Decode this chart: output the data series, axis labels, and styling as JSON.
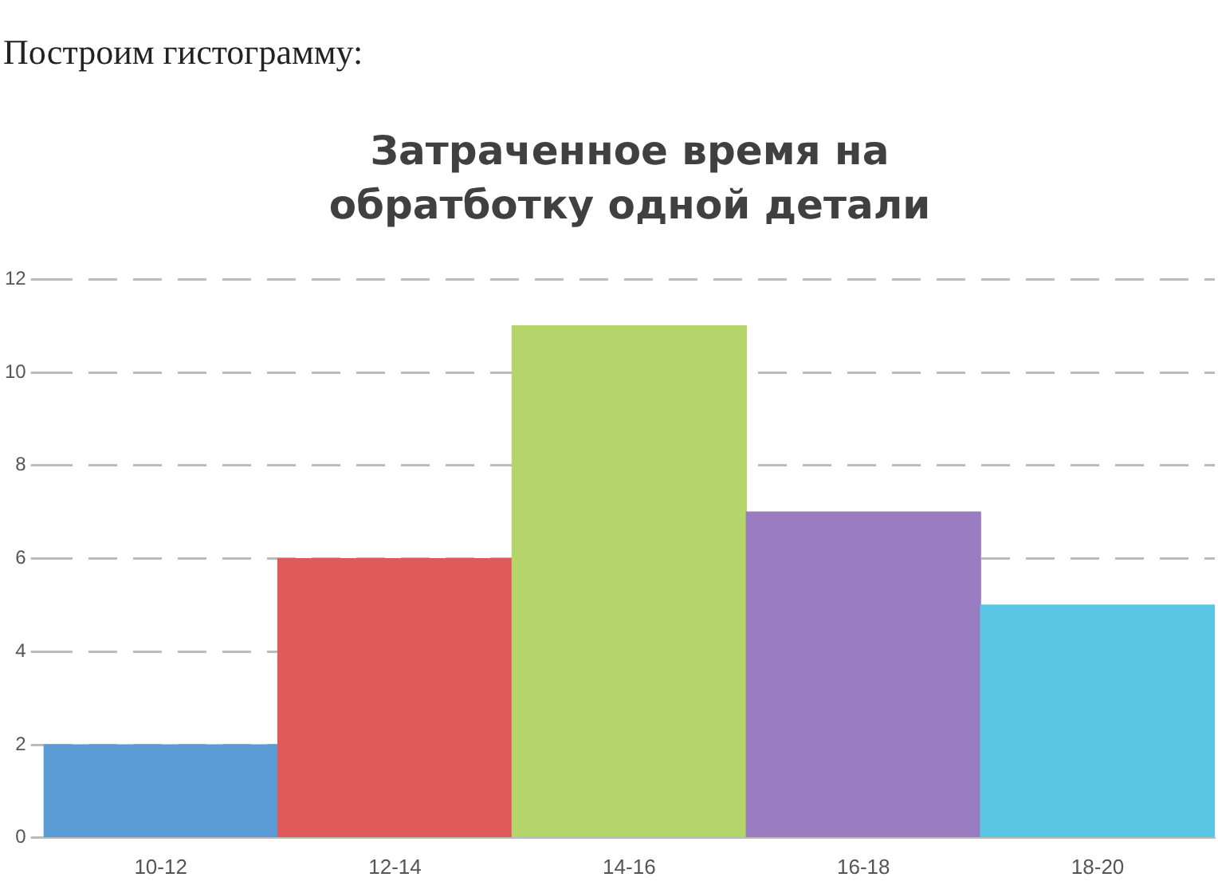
{
  "chart_data": {
    "type": "bar",
    "title": "Затраченное время на обратботку одной детали",
    "annotations": [
      "Построим гистограмму:"
    ],
    "categories": [
      "10-12",
      "12-14",
      "14-16",
      "16-18",
      "18-20"
    ],
    "values": [
      2,
      6,
      11,
      7,
      5
    ],
    "colors": [
      "#5b9bd5",
      "#e05a5a",
      "#b5d56a",
      "#9a7cc0",
      "#5bc5e5"
    ],
    "ylim": [
      0,
      12
    ],
    "yticks": [
      0,
      2,
      4,
      6,
      8,
      10,
      12
    ],
    "grid": "y",
    "legend": false
  }
}
